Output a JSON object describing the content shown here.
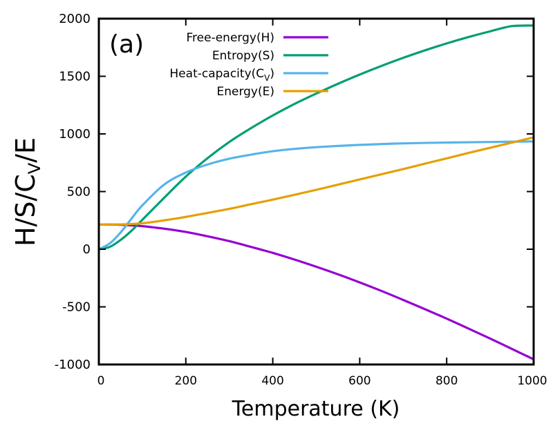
{
  "chart_data": {
    "type": "line",
    "title": "",
    "panel_label": "(a)",
    "xlabel": "Temperature (K)",
    "ylabel": {
      "main": "H/S/C",
      "subscript": "V",
      "tail": "/E"
    },
    "xlim": [
      0,
      1000
    ],
    "ylim": [
      -1000,
      2000
    ],
    "xticks": [
      0,
      200,
      400,
      600,
      800,
      1000
    ],
    "yticks": [
      -1000,
      -500,
      0,
      500,
      1000,
      1500,
      2000
    ],
    "grid": false,
    "legend_position": "top-left",
    "series": [
      {
        "name": "Free-energy(H)",
        "label_main": "Free-energy(H)",
        "label_sub": "",
        "label_tail": "",
        "color": "#9400d3",
        "x": [
          0,
          50,
          100,
          150,
          200,
          250,
          300,
          350,
          400,
          450,
          500,
          550,
          600,
          650,
          700,
          750,
          800,
          850,
          900,
          950,
          1000
        ],
        "y": [
          215,
          212,
          200,
          178,
          150,
          112,
          70,
          20,
          -32,
          -90,
          -152,
          -218,
          -288,
          -362,
          -440,
          -520,
          -602,
          -688,
          -775,
          -865,
          -955
        ]
      },
      {
        "name": "Entropy(S)",
        "label_main": "Entropy(S)",
        "label_sub": "",
        "label_tail": "",
        "color": "#009e73",
        "x": [
          0,
          25,
          50,
          75,
          100,
          150,
          200,
          250,
          300,
          350,
          400,
          450,
          500,
          550,
          600,
          650,
          700,
          750,
          800,
          850,
          900,
          950,
          1000
        ],
        "y": [
          0,
          20,
          80,
          160,
          255,
          445,
          630,
          790,
          930,
          1050,
          1160,
          1260,
          1350,
          1435,
          1515,
          1590,
          1660,
          1725,
          1785,
          1840,
          1890,
          1935,
          1940
        ]
      },
      {
        "name": "Heat-capacity(Cv)",
        "label_main": "Heat-capacity(C",
        "label_sub": "V",
        "label_tail": ")",
        "color": "#56b4e9",
        "x": [
          0,
          25,
          50,
          75,
          100,
          150,
          200,
          250,
          300,
          350,
          400,
          450,
          500,
          600,
          700,
          800,
          900,
          1000
        ],
        "y": [
          0,
          50,
          145,
          265,
          380,
          560,
          665,
          735,
          785,
          820,
          850,
          870,
          885,
          905,
          918,
          925,
          930,
          935
        ]
      },
      {
        "name": "Energy(E)",
        "label_main": "Energy(E)",
        "label_sub": "",
        "label_tail": "",
        "color": "#e69f00",
        "x": [
          0,
          50,
          100,
          150,
          200,
          250,
          300,
          350,
          400,
          450,
          500,
          550,
          600,
          650,
          700,
          750,
          800,
          850,
          900,
          950,
          1000
        ],
        "y": [
          215,
          215,
          225,
          250,
          280,
          315,
          350,
          390,
          430,
          472,
          515,
          560,
          605,
          650,
          695,
          742,
          788,
          835,
          880,
          925,
          970
        ]
      }
    ]
  }
}
